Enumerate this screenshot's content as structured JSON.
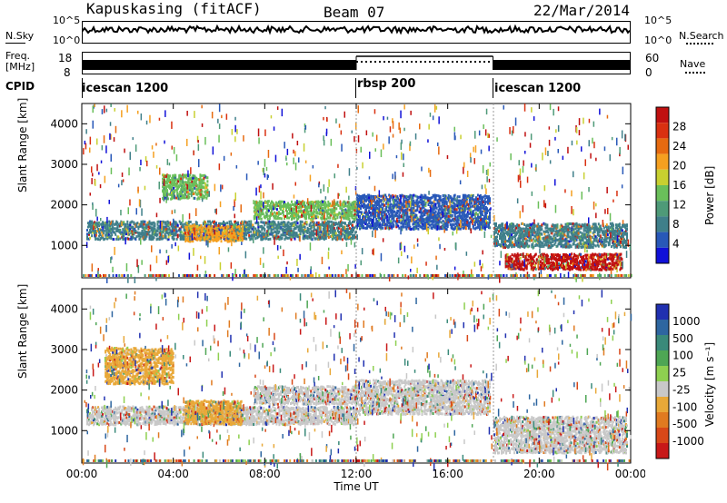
{
  "header": {
    "station": "Kapuskasing (fitACF)",
    "beam": "Beam 07",
    "date": "22/Mar/2014"
  },
  "noise_panel": {
    "left_label": "N.Sky",
    "right_label": "N.Search",
    "left_ticks": [
      "10^5",
      "10^0"
    ],
    "right_ticks": [
      "10^5",
      "10^0"
    ]
  },
  "freq_panel": {
    "left_label_1": "Freq.",
    "left_label_2": "[MHz]",
    "left_ticks": [
      "18",
      "8"
    ],
    "right_label": "Nave",
    "right_ticks": [
      "60",
      "0"
    ]
  },
  "cpid_panel": {
    "label": "CPID",
    "segments": [
      {
        "name": "icescan 1200",
        "start_hour": 0,
        "end_hour": 12
      },
      {
        "name": "rbsp 200",
        "start_hour": 12,
        "end_hour": 18
      },
      {
        "name": "icescan 1200",
        "start_hour": 18,
        "end_hour": 24
      }
    ]
  },
  "colors": {
    "power": [
      "#1010d8",
      "#2858b8",
      "#3f7f8a",
      "#4e9a78",
      "#6abf5a",
      "#c8d030",
      "#f5a020",
      "#e66a10",
      "#d93010",
      "#c01010"
    ],
    "velocity": [
      "#2030b0",
      "#2e66a0",
      "#3a8a7a",
      "#4ea654",
      "#8ed050",
      "#c8c8c8",
      "#e8a838",
      "#e07a20",
      "#d84818",
      "#c81818"
    ]
  },
  "chart_data": [
    {
      "type": "heatmap",
      "panel": "power",
      "ylabel": "Slant Range [km]",
      "xlabel": "Time UT",
      "xlim": [
        0,
        24
      ],
      "ylim": [
        200,
        4500
      ],
      "x_ticks": [
        "00:00",
        "04:00",
        "08:00",
        "12:00",
        "16:00",
        "20:00",
        "00:00"
      ],
      "y_ticks": [
        1000,
        2000,
        3000,
        4000
      ],
      "colorbar": {
        "label": "Power [dB]",
        "ticks": [
          4,
          8,
          12,
          16,
          20,
          24,
          28
        ],
        "range": [
          0,
          30
        ]
      },
      "regions": [
        {
          "t0": 0.2,
          "t1": 12.0,
          "r0": 1200,
          "r1": 1650,
          "value": 6
        },
        {
          "t0": 3.5,
          "t1": 5.5,
          "r0": 2200,
          "r1": 2800,
          "value": 14
        },
        {
          "t0": 4.5,
          "t1": 7.0,
          "r0": 1150,
          "r1": 1550,
          "value": 20
        },
        {
          "t0": 7.5,
          "t1": 12.0,
          "r0": 1700,
          "r1": 2150,
          "value": 14
        },
        {
          "t0": 12.0,
          "t1": 17.8,
          "r0": 1450,
          "r1": 2300,
          "value": 4
        },
        {
          "t0": 18.0,
          "t1": 23.8,
          "r0": 1000,
          "r1": 1600,
          "value": 8
        },
        {
          "t0": 18.5,
          "t1": 23.6,
          "r0": 450,
          "r1": 850,
          "value": 28
        }
      ]
    },
    {
      "type": "heatmap",
      "panel": "velocity",
      "ylabel": "Slant Range [km]",
      "xlabel": "Time UT",
      "xlim": [
        0,
        24
      ],
      "ylim": [
        200,
        4500
      ],
      "x_ticks": [
        "00:00",
        "04:00",
        "08:00",
        "12:00",
        "16:00",
        "20:00",
        "00:00"
      ],
      "y_ticks": [
        1000,
        2000,
        3000,
        4000
      ],
      "colorbar": {
        "label": "Velocity [m s⁻¹]",
        "ticks": [
          1000,
          500,
          100,
          25,
          -25,
          -100,
          -500,
          -1000
        ]
      },
      "regions": [
        {
          "t0": 0.2,
          "t1": 12.0,
          "r0": 1200,
          "r1": 1650,
          "value": 0
        },
        {
          "t0": 1.0,
          "t1": 4.0,
          "r0": 2200,
          "r1": 3100,
          "value": -300
        },
        {
          "t0": 4.5,
          "t1": 7.0,
          "r0": 1200,
          "r1": 1800,
          "value": -300
        },
        {
          "t0": 7.5,
          "t1": 12.0,
          "r0": 1700,
          "r1": 2150,
          "value": 0
        },
        {
          "t0": 12.0,
          "t1": 17.8,
          "r0": 1450,
          "r1": 2300,
          "value": 0
        },
        {
          "t0": 18.0,
          "t1": 23.8,
          "r0": 500,
          "r1": 1400,
          "value": 0
        }
      ]
    }
  ]
}
